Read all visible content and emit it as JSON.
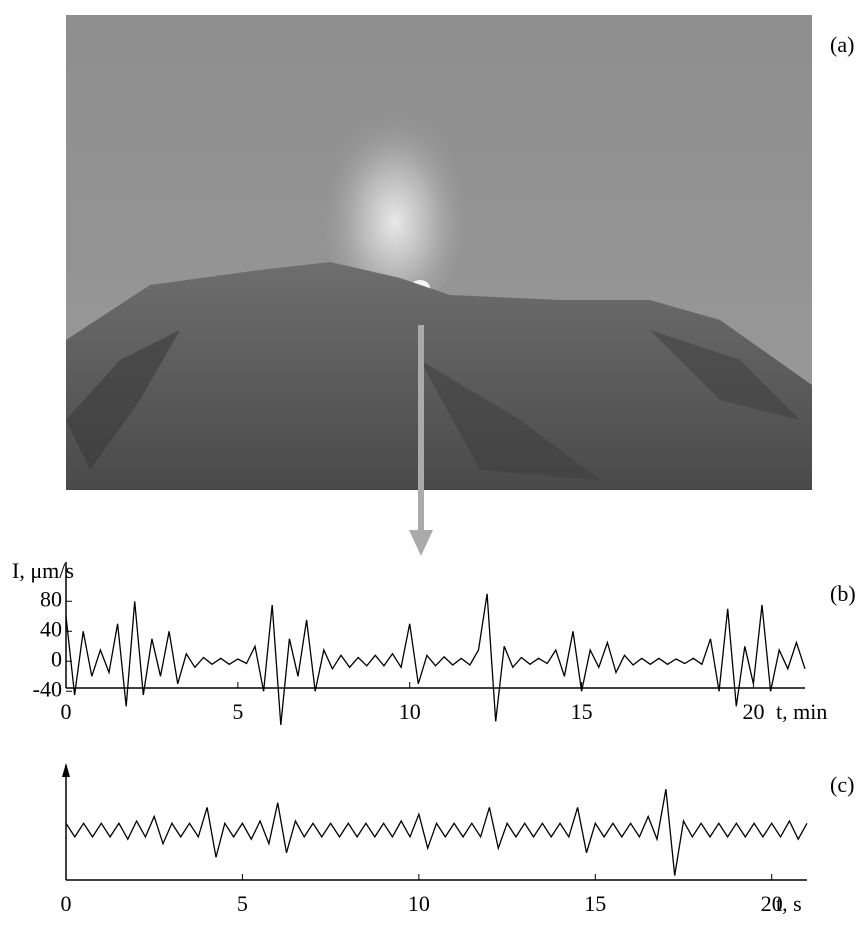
{
  "photo_label": "(a)",
  "chart_data": [
    {
      "type": "line",
      "panel_label": "(b)",
      "y_label": "I, μm/s",
      "x_label": "t, min",
      "color": "#000000",
      "xlim": [
        0,
        21.5
      ],
      "xticks": [
        0,
        5,
        10,
        15,
        20
      ],
      "ylim": [
        -45,
        95
      ],
      "yticks": [
        80,
        40,
        0,
        -40
      ],
      "x": [
        0,
        0.25,
        0.5,
        0.75,
        1,
        1.25,
        1.5,
        1.75,
        2,
        2.25,
        2.5,
        2.75,
        3,
        3.25,
        3.5,
        3.75,
        4,
        4.25,
        4.5,
        4.75,
        5,
        5.25,
        5.5,
        5.75,
        6,
        6.25,
        6.5,
        6.75,
        7,
        7.25,
        7.5,
        7.75,
        8,
        8.25,
        8.5,
        8.75,
        9,
        9.25,
        9.5,
        9.75,
        10,
        10.25,
        10.5,
        10.75,
        11,
        11.25,
        11.5,
        11.75,
        12,
        12.25,
        12.5,
        12.75,
        13,
        13.25,
        13.5,
        13.75,
        14,
        14.25,
        14.5,
        14.75,
        15,
        15.25,
        15.5,
        15.75,
        16,
        16.25,
        16.5,
        16.75,
        17,
        17.25,
        17.5,
        17.75,
        18,
        18.25,
        18.5,
        18.75,
        19,
        19.25,
        19.5,
        19.75,
        20,
        20.25,
        20.5,
        20.75,
        21,
        21.25,
        21.5
      ],
      "values": [
        60,
        -45,
        40,
        -20,
        15,
        -15,
        50,
        -60,
        80,
        -45,
        30,
        -20,
        40,
        -30,
        10,
        -8,
        5,
        -4,
        4,
        -4,
        3,
        -3,
        20,
        -40,
        75,
        -85,
        30,
        -20,
        55,
        -40,
        15,
        -10,
        8,
        -8,
        5,
        -6,
        8,
        -6,
        10,
        -8,
        50,
        -30,
        8,
        -6,
        6,
        -5,
        4,
        -5,
        15,
        90,
        -80,
        20,
        -8,
        5,
        -4,
        4,
        -3,
        15,
        -20,
        40,
        -40,
        15,
        -8,
        25,
        -15,
        8,
        -5,
        4,
        -4,
        4,
        -4,
        3,
        -3,
        4,
        -4,
        30,
        -40,
        70,
        -60,
        20,
        -30,
        75,
        -40,
        15,
        -10,
        25,
        -10
      ]
    },
    {
      "type": "line",
      "panel_label": "(c)",
      "x_label": "t, s",
      "color": "#000000",
      "xlim": [
        0,
        21
      ],
      "xticks": [
        0,
        5,
        10,
        15,
        20
      ],
      "ylim": [
        -1.1,
        1.5
      ],
      "x": [
        0,
        0.25,
        0.5,
        0.75,
        1,
        1.25,
        1.5,
        1.75,
        2,
        2.25,
        2.5,
        2.75,
        3,
        3.25,
        3.5,
        3.75,
        4,
        4.25,
        4.5,
        4.75,
        5,
        5.25,
        5.5,
        5.75,
        6,
        6.25,
        6.5,
        6.75,
        7,
        7.25,
        7.5,
        7.75,
        8,
        8.25,
        8.5,
        8.75,
        9,
        9.25,
        9.5,
        9.75,
        10,
        10.25,
        10.5,
        10.75,
        11,
        11.25,
        11.5,
        11.75,
        12,
        12.25,
        12.5,
        12.75,
        13,
        13.25,
        13.5,
        13.75,
        14,
        14.25,
        14.5,
        14.75,
        15,
        15.25,
        15.5,
        15.75,
        16,
        16.25,
        16.5,
        16.75,
        17,
        17.25,
        17.5,
        17.75,
        18,
        18.25,
        18.5,
        18.75,
        19,
        19.25,
        19.5,
        19.75,
        20,
        20.25,
        20.5,
        20.75,
        21
      ],
      "values": [
        0.15,
        -0.15,
        0.15,
        -0.15,
        0.15,
        -0.15,
        0.15,
        -0.2,
        0.2,
        -0.15,
        0.3,
        -0.3,
        0.15,
        -0.15,
        0.15,
        -0.15,
        0.5,
        -0.6,
        0.15,
        -0.15,
        0.15,
        -0.2,
        0.2,
        -0.3,
        0.6,
        -0.5,
        0.2,
        -0.15,
        0.15,
        -0.15,
        0.15,
        -0.15,
        0.15,
        -0.15,
        0.15,
        -0.15,
        0.15,
        -0.15,
        0.2,
        -0.15,
        0.35,
        -0.4,
        0.15,
        -0.15,
        0.15,
        -0.15,
        0.15,
        -0.15,
        0.5,
        -0.4,
        0.15,
        -0.15,
        0.15,
        -0.15,
        0.15,
        -0.15,
        0.15,
        -0.15,
        0.5,
        -0.5,
        0.15,
        -0.15,
        0.15,
        -0.15,
        0.15,
        -0.15,
        0.3,
        -0.2,
        0.9,
        -1.0,
        0.2,
        -0.15,
        0.15,
        -0.15,
        0.15,
        -0.15,
        0.15,
        -0.15,
        0.15,
        -0.15,
        0.15,
        -0.15,
        0.2,
        -0.2,
        0.15
      ]
    }
  ]
}
